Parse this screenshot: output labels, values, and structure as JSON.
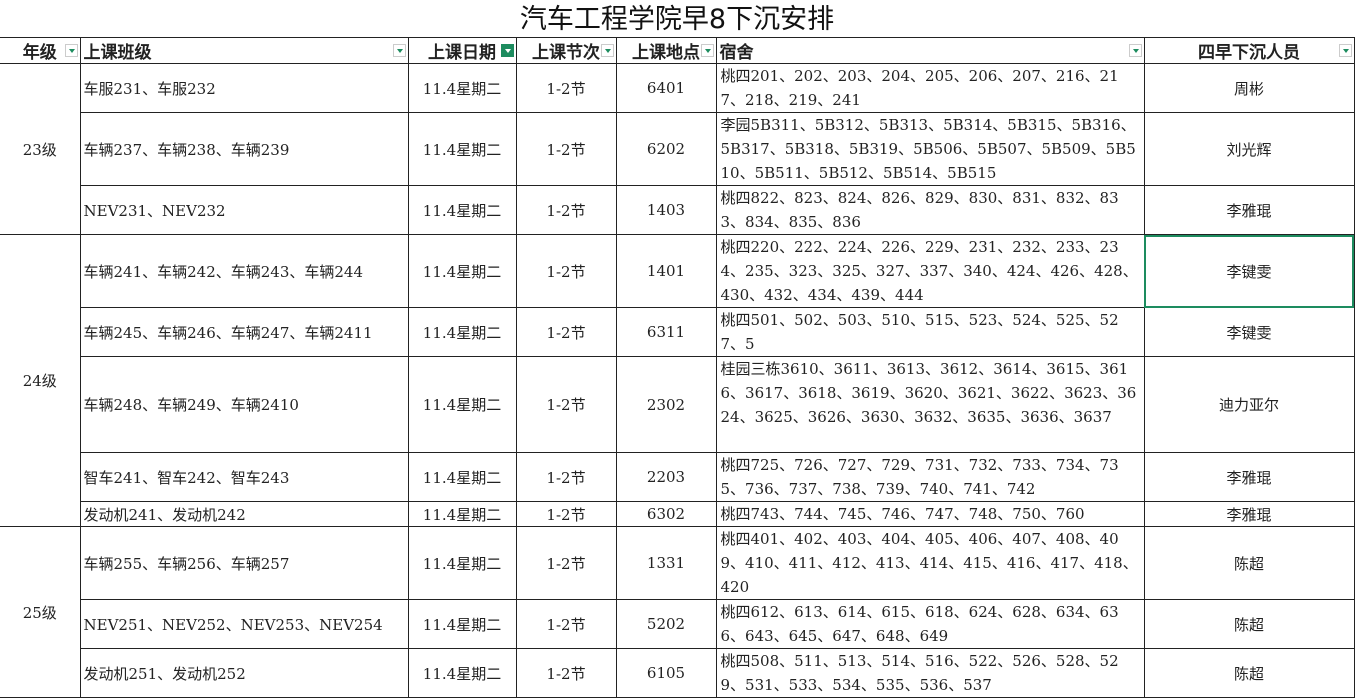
{
  "title": "汽车工程学院早8下沉安排",
  "headers": [
    "年级",
    "上课班级",
    "上课日期",
    "上课节次",
    "上课地点",
    "宿舍",
    "四早下沉人员"
  ],
  "header_display": [
    "年级",
    "上课班级",
    "上课日期",
    "上课节次",
    "上课地点",
    "宿舍",
    "四早下沉人员"
  ],
  "filter_active_column": "上课日期",
  "accent_color": "#1d8c5f",
  "groups": [
    {
      "grade": "23级",
      "rows": [
        {
          "classes": "车服231、车服232",
          "date": "11.4星期二",
          "period": "1-2节",
          "room": "6401",
          "dorm": "桃四201、202、203、204、205、206、207、216、217、218、219、241",
          "staff": "周彬"
        },
        {
          "classes": "车辆237、车辆238、车辆239",
          "date": "11.4星期二",
          "period": "1-2节",
          "room": "6202",
          "dorm": "李园5B311、5B312、5B313、5B314、5B315、5B316、5B317、5B318、5B319、5B506、5B507、5B509、5B510、5B511、5B512、5B514、5B515",
          "staff": "刘光辉"
        },
        {
          "classes": "NEV231、NEV232",
          "date": "11.4星期二",
          "period": "1-2节",
          "room": "1403",
          "dorm": "桃四822、823、824、826、829、830、831、832、833、834、835、836",
          "staff": "李雅琨"
        }
      ]
    },
    {
      "grade": "24级",
      "rows": [
        {
          "classes": "车辆241、车辆242、车辆243、车辆244",
          "date": "11.4星期二",
          "period": "1-2节",
          "room": "1401",
          "dorm": "桃四220、222、224、226、229、231、232、233、234、235、323、325、327、337、340、424、426、428、430、432、434、439、444",
          "staff": "李键雯",
          "selected": true
        },
        {
          "classes": "车辆245、车辆246、车辆247、车辆2411",
          "date": "11.4星期二",
          "period": "1-2节",
          "room": "6311",
          "dorm": "桃四501、502、503、510、515、523、524、525、527、5",
          "staff": "李键雯"
        },
        {
          "classes": "车辆248、车辆249、车辆2410",
          "date": "11.4星期二",
          "period": "1-2节",
          "room": "2302",
          "dorm": "桂园三栋3610、3611、3613、3612、3614、3615、3616、3617、3618、3619、3620、3621、3622、3623、3624、3625、3626、3630、3632、3635、3636、3637",
          "staff": "迪力亚尔"
        },
        {
          "classes": "智车241、智车242、智车243",
          "date": "11.4星期二",
          "period": "1-2节",
          "room": "2203",
          "dorm": "桃四725、726、727、729、731、732、733、734、735、736、737、738、739、740、741、742",
          "staff": "李雅琨"
        },
        {
          "classes": "发动机241、发动机242",
          "date": "11.4星期二",
          "period": "1-2节",
          "room": "6302",
          "dorm": "桃四743、744、745、746、747、748、750、760",
          "staff": "李雅琨"
        }
      ]
    },
    {
      "grade": "25级",
      "rows": [
        {
          "classes": "车辆255、车辆256、车辆257",
          "date": "11.4星期二",
          "period": "1-2节",
          "room": "1331",
          "dorm": "桃四401、402、403、404、405、406、407、408、409、410、411、412、413、414、415、416、417、418、420",
          "staff": "陈超"
        },
        {
          "classes": "NEV251、NEV252、NEV253、NEV254",
          "date": "11.4星期二",
          "period": "1-2节",
          "room": "5202",
          "dorm": "桃四612、613、614、615、618、624、628、634、636、643、645、647、648、649",
          "staff": "陈超"
        },
        {
          "classes": "发动机251、发动机252",
          "date": "11.4星期二",
          "period": "1-2节",
          "room": "6105",
          "dorm": "桃四508、511、513、514、516、522、526、528、529、531、533、534、535、536、537",
          "staff": "陈超"
        }
      ]
    }
  ]
}
